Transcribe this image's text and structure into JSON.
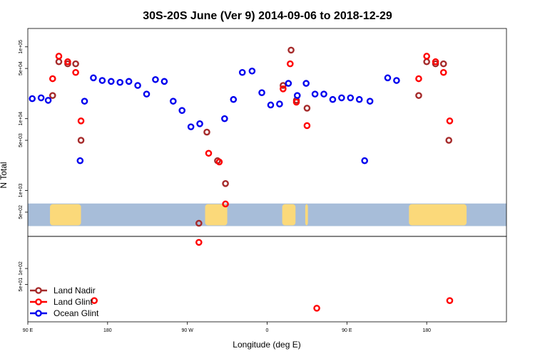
{
  "chart_data": {
    "type": "scatter",
    "title": "30S-20S June (Ver 9)   2014-09-06 to 2018-12-29",
    "xlabel": "Longitude (deg E)",
    "ylabel": "N Total",
    "y_scale": "log",
    "x_ticks": [
      {
        "value": 90,
        "label": "90 E"
      },
      {
        "value": 180,
        "label": "180"
      },
      {
        "value": 270,
        "label": "90 W"
      },
      {
        "value": 360,
        "label": "0"
      },
      {
        "value": 450,
        "label": "90 E"
      },
      {
        "value": 540,
        "label": "180"
      }
    ],
    "upper_y_ticks": [
      {
        "value": 500,
        "label": "5e+02"
      },
      {
        "value": 1000,
        "label": "1e+03"
      },
      {
        "value": 5000,
        "label": "5e+03"
      },
      {
        "value": 10000,
        "label": "1e+04"
      },
      {
        "value": 50000,
        "label": "5e+04"
      },
      {
        "value": 100000,
        "label": "1e+05"
      }
    ],
    "lower_y_ticks": [
      {
        "value": 50,
        "label": "5e+01"
      },
      {
        "value": 100,
        "label": "1e+02"
      }
    ],
    "legend": {
      "position": "bottom-left",
      "entries": [
        {
          "name": "Land Nadir",
          "color": "#a52a2a"
        },
        {
          "name": "Land Glint",
          "color": "#ff0000"
        },
        {
          "name": "Ocean Glint",
          "color": "#0000ee"
        }
      ]
    },
    "series": [
      {
        "name": "Land Nadir",
        "color": "#a52a2a",
        "panel": "upper",
        "points": [
          [
            118,
            21000
          ],
          [
            125,
            62000
          ],
          [
            135,
            58000
          ],
          [
            144,
            58000
          ],
          [
            150,
            5000
          ],
          [
            283,
            350
          ],
          [
            292,
            6500
          ],
          [
            304,
            2600
          ],
          [
            313,
            1250
          ],
          [
            378,
            29000
          ],
          [
            387,
            90000
          ],
          [
            393,
            18000
          ],
          [
            405,
            14000
          ],
          [
            531,
            21000
          ],
          [
            540,
            62000
          ],
          [
            550,
            58000
          ],
          [
            559,
            58000
          ],
          [
            565,
            5000
          ]
        ]
      },
      {
        "name": "Land Glint",
        "color": "#ff0000",
        "panel": "upper",
        "points": [
          [
            118,
            36000
          ],
          [
            125,
            74000
          ],
          [
            135,
            62000
          ],
          [
            144,
            44000
          ],
          [
            150,
            9300
          ],
          [
            283,
            190
          ],
          [
            294,
            3300
          ],
          [
            306,
            2500
          ],
          [
            313,
            650
          ],
          [
            378,
            26000
          ],
          [
            386,
            58000
          ],
          [
            393,
            17000
          ],
          [
            405,
            8000
          ],
          [
            531,
            36000
          ],
          [
            540,
            74000
          ],
          [
            550,
            62000
          ],
          [
            559,
            44000
          ],
          [
            566,
            9300
          ]
        ]
      },
      {
        "name": "Ocean Glint",
        "color": "#0000ee",
        "panel": "upper",
        "points": [
          [
            95,
            19000
          ],
          [
            105,
            19500
          ],
          [
            113,
            18000
          ],
          [
            149,
            2600
          ],
          [
            154,
            17500
          ],
          [
            164,
            37000
          ],
          [
            174,
            34000
          ],
          [
            184,
            33000
          ],
          [
            194,
            32000
          ],
          [
            204,
            33000
          ],
          [
            214,
            29000
          ],
          [
            224,
            22000
          ],
          [
            234,
            35000
          ],
          [
            244,
            33000
          ],
          [
            254,
            17500
          ],
          [
            264,
            13000
          ],
          [
            274,
            7700
          ],
          [
            284,
            8500
          ],
          [
            312,
            10000
          ],
          [
            322,
            18500
          ],
          [
            332,
            44000
          ],
          [
            343,
            46000
          ],
          [
            354,
            23000
          ],
          [
            364,
            15500
          ],
          [
            374,
            16000
          ],
          [
            384,
            31000
          ],
          [
            394,
            21000
          ],
          [
            404,
            31000
          ],
          [
            414,
            22000
          ],
          [
            424,
            22000
          ],
          [
            434,
            18500
          ],
          [
            444,
            19500
          ],
          [
            454,
            19500
          ],
          [
            464,
            18500
          ],
          [
            470,
            2600
          ],
          [
            476,
            17500
          ],
          [
            496,
            37000
          ],
          [
            506,
            34000
          ]
        ]
      },
      {
        "name": "Land Glint",
        "color": "#ff0000",
        "panel": "lower",
        "points": [
          [
            165,
            25
          ],
          [
            416,
            18
          ],
          [
            566,
            25
          ]
        ]
      }
    ],
    "colors": {
      "ocean_band": "#a7bdd9",
      "land_band": "#fbd97a"
    },
    "land_band": {
      "y_range": [
        320,
        660
      ],
      "land_ranges": [
        [
          115,
          150
        ],
        [
          290,
          315
        ],
        [
          377,
          392
        ],
        [
          403,
          406
        ],
        [
          520,
          585
        ]
      ]
    },
    "x_range": [
      90,
      630
    ],
    "upper_ylim": [
      230,
      180000
    ],
    "lower_ylim": [
      10,
      400
    ]
  }
}
